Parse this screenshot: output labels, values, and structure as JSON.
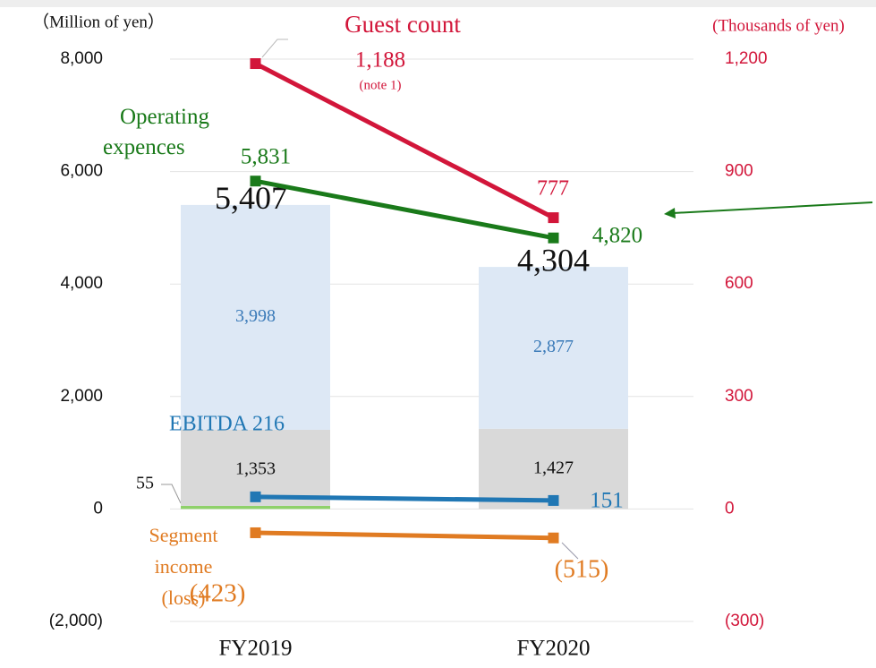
{
  "chart_data": {
    "type": "bar",
    "categories": [
      "FY2019",
      "FY2020"
    ],
    "ylabel": "（Million of yen）",
    "y2label": "(Thousands of yen)",
    "ylim": [
      -2000,
      8000
    ],
    "yticks": [
      {
        "value": -2000,
        "label": "(2,000)"
      },
      0,
      {
        "value": 2000,
        "label": "2,000"
      },
      {
        "value": 4000,
        "label": "4,000"
      },
      {
        "value": 6000,
        "label": "6,000"
      },
      {
        "value": 8000,
        "label": "8,000"
      }
    ],
    "y2lim": [
      -300,
      1200
    ],
    "y2ticks": [
      {
        "value": -300,
        "label": "(300)"
      },
      0,
      300,
      600,
      900,
      {
        "value": 1200,
        "label": "1,200"
      }
    ],
    "grid": true,
    "totals": [
      5407,
      4304
    ],
    "total_labels": [
      "5,407",
      "4,304"
    ],
    "series": [
      {
        "type": "bar",
        "color": "#8fd16a",
        "values": [
          55,
          null
        ]
      },
      {
        "type": "bar",
        "color": "#d9d9d9",
        "label_color": "#111111",
        "values": [
          1353,
          1427
        ],
        "value_labels": [
          "1,353",
          "1,427"
        ]
      },
      {
        "type": "bar",
        "color": "#dde8f5",
        "label_color": "#3a7ab8",
        "values": [
          3998,
          2877
        ],
        "value_labels": [
          "3,998",
          "2,877"
        ]
      },
      {
        "type": "line",
        "name": "Guest count",
        "axis": "y2",
        "color": "#d2163a",
        "values": [
          1188,
          777
        ],
        "value_labels": [
          "1,188",
          "777"
        ],
        "note": "(note 1)"
      },
      {
        "type": "line",
        "name": "Operating expences",
        "color": "#1a7a1a",
        "values": [
          5831,
          4820
        ],
        "value_labels": [
          "5,831",
          "4,820"
        ]
      },
      {
        "type": "line",
        "name": "EBITDA",
        "color": "#2077b4",
        "values": [
          216,
          151
        ]
      },
      {
        "type": "line",
        "name": "Segment income (loss)",
        "color": "#e07b22",
        "values": [
          -423,
          -515
        ],
        "value_labels": [
          "(423)",
          "(515)"
        ]
      }
    ]
  }
}
